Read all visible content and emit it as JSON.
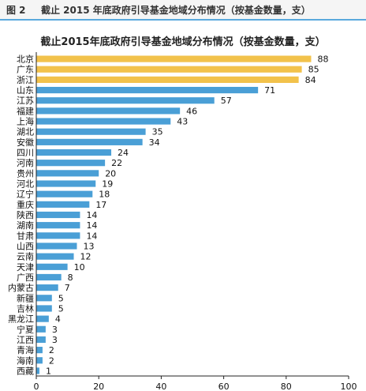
{
  "header": {
    "figure_number": "图 2",
    "figure_title": "截止 2015 年底政府引导基金地域分布情况（按基金数量，支）"
  },
  "chart_data": {
    "type": "bar",
    "orientation": "horizontal",
    "title": "截止2015年底政府引导基金地域分布情况（按基金数量，支）",
    "categories": [
      "北京",
      "广东",
      "浙江",
      "山东",
      "江苏",
      "福建",
      "上海",
      "湖北",
      "安徽",
      "四川",
      "河南",
      "贵州",
      "河北",
      "辽宁",
      "重庆",
      "陕西",
      "湖南",
      "甘肃",
      "山西",
      "云南",
      "天津",
      "广西",
      "内蒙古",
      "新疆",
      "吉林",
      "黑龙江",
      "宁夏",
      "江西",
      "青海",
      "海南",
      "西藏"
    ],
    "values": [
      88,
      85,
      84,
      71,
      57,
      46,
      43,
      35,
      34,
      24,
      22,
      20,
      19,
      18,
      17,
      14,
      14,
      14,
      13,
      12,
      10,
      8,
      7,
      5,
      5,
      4,
      3,
      3,
      2,
      2,
      1
    ],
    "highlight_top": 3,
    "xlim": [
      0,
      100
    ],
    "xticks": [
      0,
      20,
      40,
      60,
      80,
      100
    ],
    "colors": {
      "highlight": "#f2c24b",
      "bar": "#4a9fd6",
      "axis": "#222222"
    },
    "grid": false
  }
}
